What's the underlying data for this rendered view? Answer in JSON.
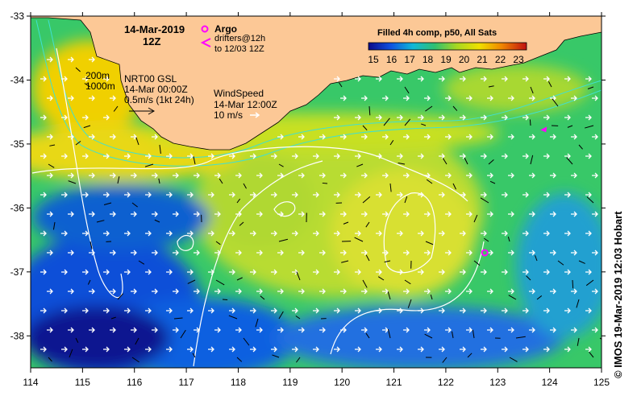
{
  "map": {
    "date_line1": "14-Mar-2019",
    "date_line2": "12Z",
    "legend_argo": "Argo",
    "legend_drifters_line1": "drifters@12h",
    "legend_drifters_line2": "to 12/03 12Z",
    "colorbar_title": "Filled 4h comp, p50, All Sats",
    "colorbar_ticks": [
      "15",
      "16",
      "17",
      "18",
      "19",
      "20",
      "21",
      "22",
      "23"
    ],
    "colorbar_range": [
      15,
      23
    ],
    "isobath_200": "200m",
    "isobath_1000": "1000m",
    "currents_line1": "NRT00 GSL",
    "currents_line2": "14-Mar 00:00Z",
    "currents_line3": "0.5m/s (1kt 24h)",
    "wind_line1": "WindSpeed",
    "wind_line2": "14-Mar 12:00Z",
    "wind_line3": "10 m/s",
    "credit": "© IMOS 19-Mar-2019 12:03 Hobart",
    "lon_ticks": [
      "114",
      "115",
      "116",
      "117",
      "118",
      "119",
      "120",
      "121",
      "122",
      "123",
      "124",
      "125"
    ],
    "lat_ticks": [
      "-33",
      "-34",
      "-35",
      "-36",
      "-37",
      "-38"
    ],
    "lon_range": [
      114,
      125
    ],
    "lat_range": [
      -38.5,
      -33
    ],
    "colors": {
      "land": "#fcc896",
      "argo": "#ff00ff",
      "drifter": "#ff00ff",
      "vector": "#000000",
      "contour": "#ffffff",
      "isobath": "#40e0d0"
    },
    "argo_float": {
      "lon": 122.75,
      "lat": -36.7
    },
    "drifter": {
      "lon": 123.9,
      "lat": -34.78
    }
  }
}
